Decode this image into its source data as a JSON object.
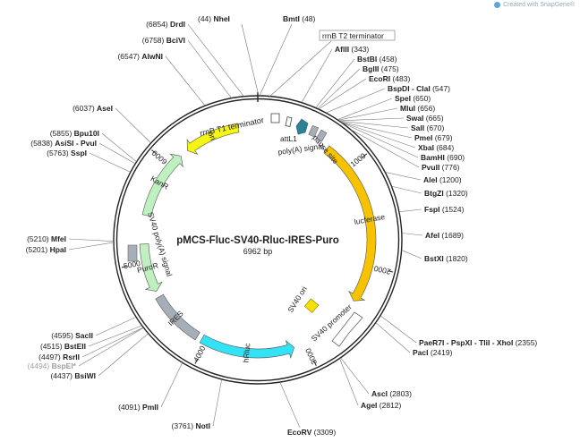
{
  "brand": {
    "logo_icon": "snapgene-logo-icon",
    "text": "Created with SnapGene®"
  },
  "plasmid": {
    "name": "pMCS-Fluc-SV40-Rluc-IRES-Puro",
    "size_label": "6962 bp",
    "length": 6962,
    "tick_labels": [
      {
        "pos": 1000,
        "text": "1000"
      },
      {
        "pos": 2000,
        "text": "2000"
      },
      {
        "pos": 3000,
        "text": "3000"
      },
      {
        "pos": 4000,
        "text": "4000"
      },
      {
        "pos": 5000,
        "text": "5000"
      },
      {
        "pos": 6000,
        "text": "6000"
      }
    ]
  },
  "features": [
    {
      "name": "ori",
      "start": 6770,
      "end": 6222,
      "kind": "arrow",
      "color": "#f5f513"
    },
    {
      "name": "lucferase",
      "start": 720,
      "end": 2370,
      "kind": "arrow",
      "color": "#f7c200"
    },
    {
      "name": "hRluc",
      "start": 3120,
      "end": 4050,
      "kind": "arrow-rev",
      "color": "#33e3f5"
    },
    {
      "name": "IRES",
      "start": 4100,
      "end": 4640,
      "kind": "bar",
      "color": "#a6aeb8"
    },
    {
      "name": "PuroR",
      "start": 4700,
      "end": 5180,
      "kind": "arrow-rev",
      "color": "#bff0bf"
    },
    {
      "name": "KanR",
      "start": 5460,
      "end": 6140,
      "kind": "arrow",
      "color": "#bff0bf"
    }
  ],
  "inner_features": [
    {
      "name": "rrnB T1 terminator",
      "shape": "box"
    },
    {
      "name": "attL1",
      "shape": "box"
    },
    {
      "name": "poly(A) signal",
      "shape": "arrow"
    },
    {
      "name": "pause site",
      "shape": "box"
    },
    {
      "name": "SV40 ori",
      "shape": "box"
    },
    {
      "name": "SV40 promoter",
      "shape": "arrow"
    },
    {
      "name": "SV40 poly(A) signal",
      "shape": "box"
    }
  ],
  "sites_top": [
    {
      "label": "NheI",
      "pos": "(44)"
    },
    {
      "label": "BmtI",
      "pos": "(48)"
    }
  ],
  "rrnB_T2_label": "rrnB T2 terminator",
  "sites_left": [
    {
      "pos": "(6854)",
      "label": "DrdI"
    },
    {
      "pos": "(6758)",
      "label": "BciVI"
    },
    {
      "pos": "(6547)",
      "label": "AlwNI"
    },
    {
      "pos": "(6037)",
      "label": "AseI"
    },
    {
      "pos": "(5855)",
      "label": "Bpu10I"
    },
    {
      "pos": "(5838)",
      "label": "AsiSI - PvuI"
    },
    {
      "pos": "(5763)",
      "label": "SspI"
    },
    {
      "pos": "(5210)",
      "label": "MfeI"
    },
    {
      "pos": "(5201)",
      "label": "HpaI"
    },
    {
      "pos": "(4595)",
      "label": "SacII"
    },
    {
      "pos": "(4515)",
      "label": "BstEII"
    },
    {
      "pos": "(4497)",
      "label": "RsrII"
    },
    {
      "pos": "(4494)",
      "label": "BspEI*",
      "gray": true
    },
    {
      "pos": "(4437)",
      "label": "BsiWI"
    },
    {
      "pos": "(4091)",
      "label": "PmlI"
    },
    {
      "pos": "(3761)",
      "label": "NotI"
    }
  ],
  "sites_right": [
    {
      "label": "AflII",
      "pos": "(343)"
    },
    {
      "label": "BstBI",
      "pos": "(458)"
    },
    {
      "label": "BglII",
      "pos": "(475)"
    },
    {
      "label": "EcoRI",
      "pos": "(483)"
    },
    {
      "label": "BspDI - ClaI",
      "pos": "(547)"
    },
    {
      "label": "SpeI",
      "pos": "(650)"
    },
    {
      "label": "MluI",
      "pos": "(656)"
    },
    {
      "label": "SwaI",
      "pos": "(665)"
    },
    {
      "label": "SalI",
      "pos": "(670)"
    },
    {
      "label": "PmeI",
      "pos": "(679)"
    },
    {
      "label": "XbaI",
      "pos": "(684)"
    },
    {
      "label": "BamHI",
      "pos": "(690)"
    },
    {
      "label": "PvuII",
      "pos": "(776)"
    },
    {
      "label": "AleI",
      "pos": "(1200)"
    },
    {
      "label": "BtgZI",
      "pos": "(1320)"
    },
    {
      "label": "FspI",
      "pos": "(1524)"
    },
    {
      "label": "AfeI",
      "pos": "(1689)"
    },
    {
      "label": "BstXI",
      "pos": "(1820)"
    },
    {
      "label": "PaeR7I - PspXI - TliI - XhoI",
      "pos": "(2355)"
    },
    {
      "label": "PacI",
      "pos": "(2419)"
    },
    {
      "label": "AscI",
      "pos": "(2803)"
    },
    {
      "label": "AgeI",
      "pos": "(2812)"
    }
  ],
  "sites_bottom": [
    {
      "label": "EcoRV",
      "pos": "(3309)"
    }
  ]
}
